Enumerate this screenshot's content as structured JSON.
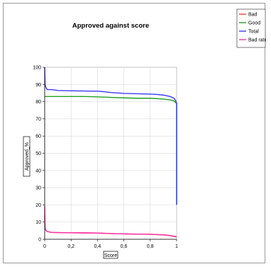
{
  "chart_data": {
    "type": "line",
    "title": "Approved against score",
    "xlabel": "Score",
    "ylabel": "Approved_%",
    "xlim": [
      0,
      1
    ],
    "ylim": [
      0,
      100
    ],
    "x_ticks": [
      "0",
      "0,2",
      "0,4",
      "0,6",
      "0,8",
      "1"
    ],
    "y_ticks": [
      "0",
      "10",
      "20",
      "30",
      "40",
      "50",
      "60",
      "70",
      "80",
      "90",
      "100"
    ],
    "grid": true,
    "legend_position": "top-right",
    "series": [
      {
        "name": "Bad",
        "color": "#ff3b3b",
        "x": [
          0,
          0.003,
          0.01,
          0.02,
          0.05,
          0.1,
          0.2,
          0.3,
          0.4,
          0.5,
          0.6,
          0.7,
          0.8,
          0.9,
          0.95,
          0.98,
          1.0
        ],
        "y": [
          14,
          6,
          5,
          4.5,
          4,
          3.9,
          3.8,
          3.7,
          3.6,
          3.3,
          3.1,
          3.0,
          2.9,
          2.6,
          2.2,
          1.8,
          1.5
        ]
      },
      {
        "name": "Good",
        "color": "#22a022",
        "x": [
          0,
          0.01,
          0.05,
          0.1,
          0.2,
          0.3,
          0.4,
          0.5,
          0.6,
          0.7,
          0.8,
          0.9,
          0.95,
          0.98,
          0.99,
          1.0,
          1.0
        ],
        "y": [
          83,
          83,
          83,
          83,
          83,
          83,
          82.8,
          82.5,
          82.2,
          82,
          82,
          81.5,
          81,
          80.5,
          79.5,
          79,
          20
        ]
      },
      {
        "name": "Total",
        "color": "#3a3aff",
        "x": [
          0,
          0.003,
          0.01,
          0.02,
          0.05,
          0.1,
          0.2,
          0.3,
          0.4,
          0.45,
          0.5,
          0.6,
          0.7,
          0.8,
          0.85,
          0.9,
          0.95,
          0.98,
          0.99,
          1.0,
          1.0
        ],
        "y": [
          100,
          90,
          88,
          87,
          87,
          86.5,
          86.3,
          86.2,
          86.1,
          85.8,
          85.3,
          84.8,
          84.6,
          84.4,
          84.2,
          83.8,
          83,
          82,
          81,
          79,
          20
        ]
      },
      {
        "name": "Bad rate",
        "color": "#ff2fa8",
        "x": [
          0,
          0.003,
          0.01,
          0.02,
          0.05,
          0.1,
          0.2,
          0.3,
          0.4,
          0.5,
          0.6,
          0.7,
          0.8,
          0.9,
          0.95,
          0.98,
          1.0
        ],
        "y": [
          19,
          7,
          5,
          4.5,
          4,
          3.9,
          3.8,
          3.7,
          3.6,
          3.3,
          3.1,
          3.0,
          2.9,
          2.5,
          2.1,
          1.6,
          1.3
        ]
      }
    ]
  }
}
